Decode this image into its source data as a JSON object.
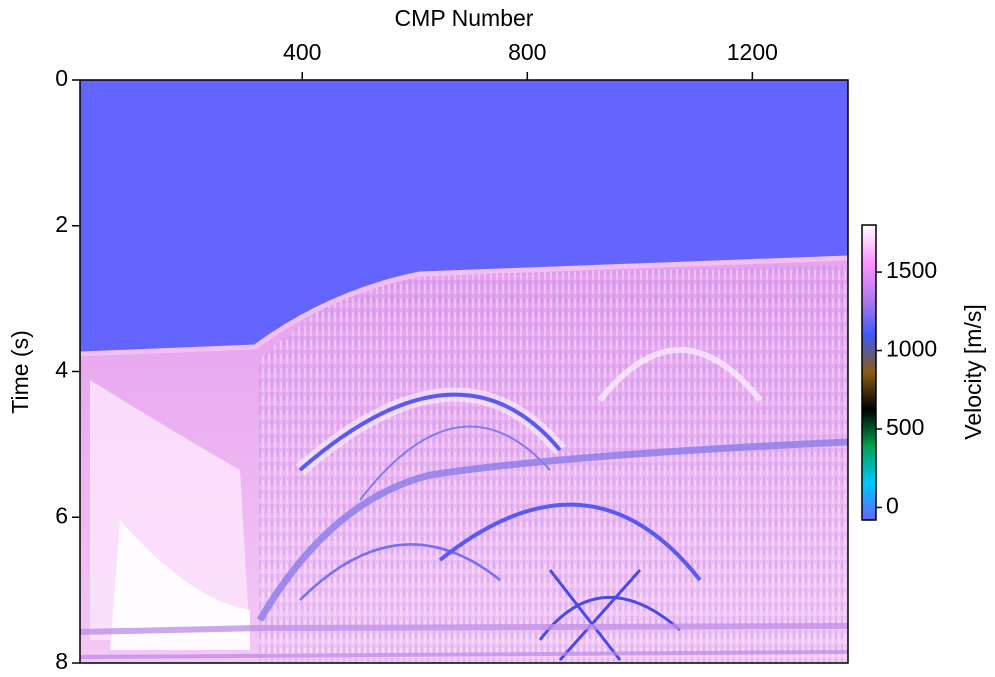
{
  "chart_data": {
    "type": "image",
    "x_label": "CMP Number",
    "y_label": "Time (s)",
    "xlim": [
      5,
      1370
    ],
    "xticks": [
      400,
      800,
      1200
    ],
    "x_axis_position": "top",
    "ylim": [
      0,
      8
    ],
    "yticks": [
      0,
      2,
      4,
      6,
      8
    ],
    "y_inverted": true,
    "colorbar": {
      "label": "Velocity [m/s]",
      "lim": [
        -80,
        1800
      ],
      "ticks": [
        0,
        500,
        1000,
        1500
      ],
      "colormap": [
        "#6464ff",
        "#00c8ff",
        "#00a050",
        "#000000",
        "#8c5a14",
        "#3c5af0",
        "#b478f0",
        "#ff96ff",
        "#ffffff"
      ]
    }
  }
}
